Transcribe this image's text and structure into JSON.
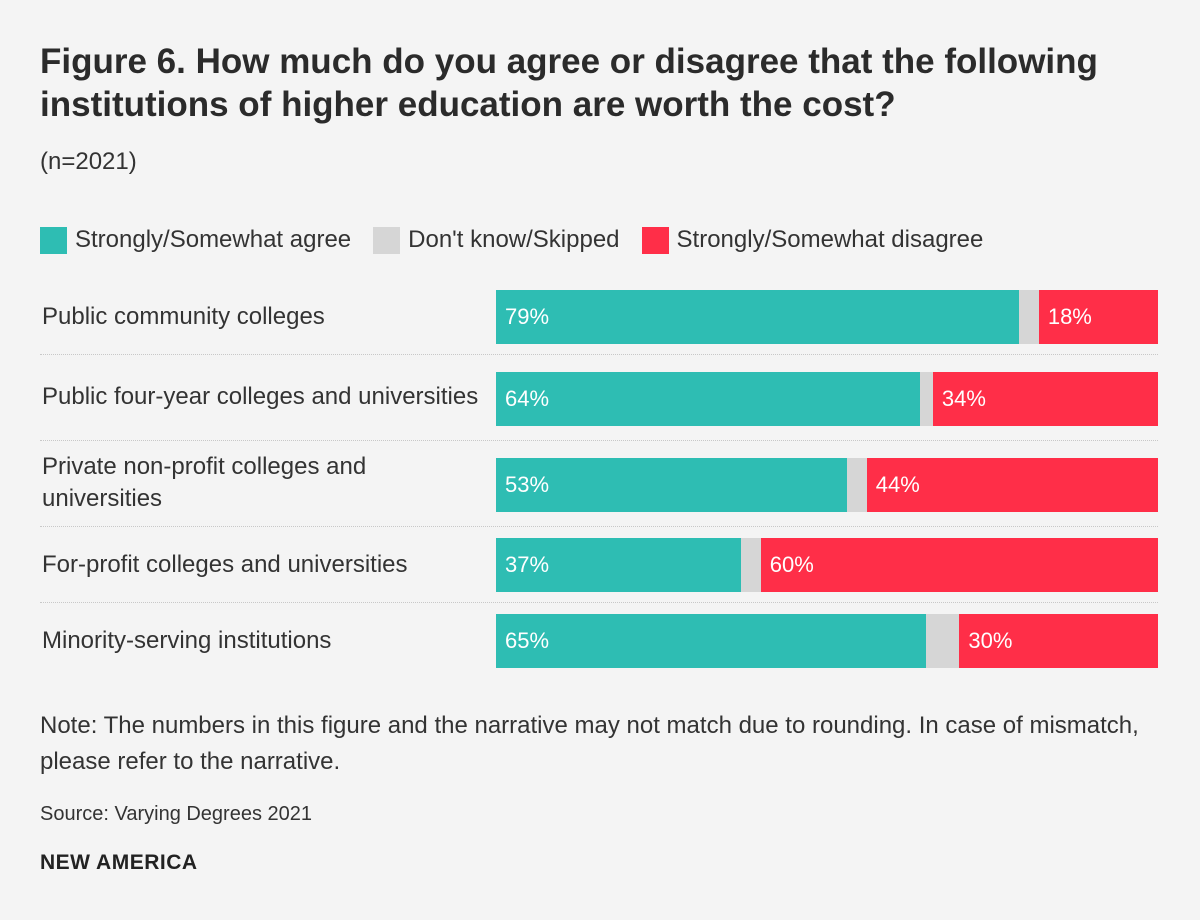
{
  "title": "Figure 6. How much do you agree or disagree that the following institutions of higher education are worth the cost?",
  "subtitle": "(n=2021)",
  "colors": {
    "agree": "#2ebdb3",
    "dont_know": "#d6d6d6",
    "disagree": "#ff2e48"
  },
  "chart_data": {
    "type": "bar",
    "orientation": "horizontal",
    "stacked": true,
    "title": "Figure 6. How much do you agree or disagree that the following institutions of higher education are worth the cost?",
    "subtitle": "(n=2021)",
    "xlim": [
      0,
      100
    ],
    "legend": {
      "placement": "top-left",
      "entries": [
        "Strongly/Somewhat agree",
        "Don't know/Skipped",
        "Strongly/Somewhat disagree"
      ]
    },
    "categories": [
      "Public community colleges",
      "Public four-year colleges and universities",
      "Private non-profit colleges and universities",
      "For-profit colleges and universities",
      "Minority-serving institutions"
    ],
    "series": [
      {
        "name": "Strongly/Somewhat agree",
        "values": [
          79,
          64,
          53,
          37,
          65
        ],
        "labels": [
          "79%",
          "64%",
          "53%",
          "37%",
          "65%"
        ]
      },
      {
        "name": "Don't know/Skipped",
        "values": [
          3,
          2,
          3,
          3,
          5
        ],
        "labels": [
          "",
          "",
          "",
          "",
          ""
        ]
      },
      {
        "name": "Strongly/Somewhat disagree",
        "values": [
          18,
          34,
          44,
          60,
          30
        ],
        "labels": [
          "18%",
          "34%",
          "44%",
          "60%",
          "30%"
        ]
      }
    ]
  },
  "note": "Note: The numbers in this figure and the narrative may not match due to rounding. In case of mismatch, please refer to the narrative.",
  "source": "Source: Varying Degrees 2021",
  "brand": "NEW AMERICA"
}
